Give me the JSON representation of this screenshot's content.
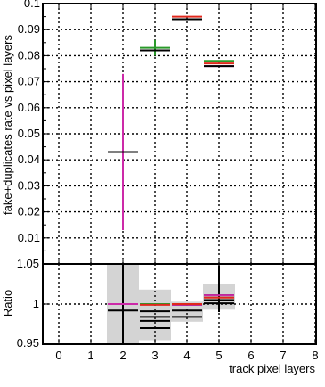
{
  "chart_data": [
    {
      "type": "scatter",
      "panel": "main",
      "ylabel": "fake+duplicates rate vs pixel layers",
      "xlim": [
        -0.5,
        8
      ],
      "ylim": [
        0,
        0.1
      ],
      "grid": true,
      "y_tick_labels": [
        "0.01",
        "0.02",
        "0.03",
        "0.04",
        "0.05",
        "0.06",
        "0.07",
        "0.08",
        "0.09",
        "0.1"
      ],
      "series": [
        {
          "color": "#cc2aa8",
          "points": [
            {
              "x": 2,
              "y": 0.043,
              "yerr_low": 0.013,
              "yerr_high": 0.073
            },
            {
              "x": 3,
              "y": 0.082
            },
            {
              "x": 4,
              "y": 0.094
            },
            {
              "x": 5,
              "y": 0.076
            }
          ]
        },
        {
          "color": "#2a9a2a",
          "points": [
            {
              "x": 3,
              "y": 0.083,
              "yerr_low": 0.08,
              "yerr_high": 0.086
            },
            {
              "x": 4,
              "y": 0.094
            },
            {
              "x": 5,
              "y": 0.078
            }
          ]
        },
        {
          "color": "#e0281c",
          "points": [
            {
              "x": 3,
              "y": 0.082
            },
            {
              "x": 4,
              "y": 0.095
            },
            {
              "x": 5,
              "y": 0.077
            }
          ]
        },
        {
          "color": "#000000",
          "points": [
            {
              "x": 2,
              "y": 0.043
            },
            {
              "x": 3,
              "y": 0.082
            },
            {
              "x": 4,
              "y": 0.094
            },
            {
              "x": 5,
              "y": 0.076
            }
          ]
        }
      ]
    },
    {
      "type": "scatter",
      "panel": "ratio",
      "xlabel": "track pixel layers",
      "ylabel": "Ratio",
      "xlim": [
        -0.5,
        8
      ],
      "ylim": [
        0.95,
        1.05
      ],
      "grid": true,
      "x_tick_labels": [
        "0",
        "1",
        "2",
        "3",
        "4",
        "5",
        "6",
        "7",
        "8"
      ],
      "y_tick_labels": [
        "0.95",
        "1",
        "1.05"
      ],
      "uncertainty_band": [
        {
          "x0": 1.5,
          "x1": 2.5,
          "y0": 0.95,
          "y1": 1.05
        },
        {
          "x0": 2.5,
          "x1": 3.5,
          "y0": 0.955,
          "y1": 1.018
        },
        {
          "x0": 3.5,
          "x1": 4.5,
          "y0": 0.978,
          "y1": 1.003
        },
        {
          "x0": 4.5,
          "x1": 5.5,
          "y0": 0.993,
          "y1": 1.025
        }
      ],
      "series": [
        {
          "color": "#000000",
          "points": [
            {
              "x": 2,
              "y": 1.0,
              "yerr_low": 0.95,
              "yerr_high": 1.05
            },
            {
              "x": 2,
              "y": 0.992
            },
            {
              "x": 3,
              "y": 0.991
            },
            {
              "x": 3,
              "y": 0.984
            },
            {
              "x": 3,
              "y": 0.979
            },
            {
              "x": 3,
              "y": 0.97
            },
            {
              "x": 4,
              "y": 0.999
            },
            {
              "x": 4,
              "y": 0.992
            },
            {
              "x": 4,
              "y": 0.984
            },
            {
              "x": 5,
              "y": 1.001,
              "yerr_low": 0.99,
              "yerr_high": 1.048
            },
            {
              "x": 5,
              "y": 1.005
            },
            {
              "x": 5,
              "y": 1.011
            }
          ]
        },
        {
          "color": "#cc2aa8",
          "points": [
            {
              "x": 2,
              "y": 1.0
            },
            {
              "x": 3,
              "y": 1.0
            },
            {
              "x": 4,
              "y": 0.999
            },
            {
              "x": 5,
              "y": 1.011
            }
          ]
        },
        {
          "color": "#2a9a2a",
          "points": [
            {
              "x": 3,
              "y": 1.0
            },
            {
              "x": 4,
              "y": 1.0
            },
            {
              "x": 5,
              "y": 1.05
            }
          ]
        },
        {
          "color": "#e0281c",
          "points": [
            {
              "x": 3,
              "y": 0.999
            },
            {
              "x": 4,
              "y": 1.0
            },
            {
              "x": 5,
              "y": 1.008
            }
          ]
        }
      ]
    }
  ]
}
